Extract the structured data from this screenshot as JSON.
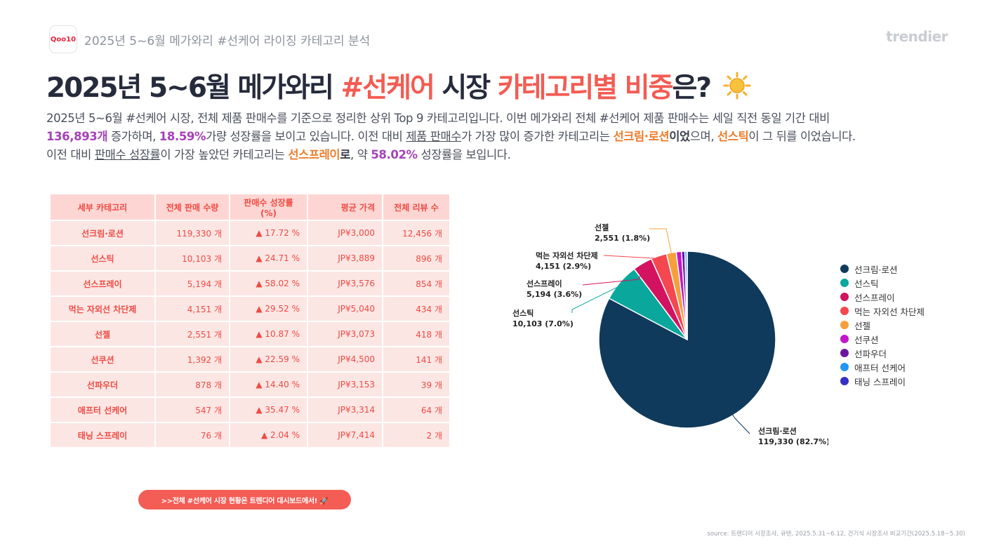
{
  "header": {
    "logo_text": "Qoo10",
    "top_label": "2025년 5~6월 메가와리 #선케어 라이징 카테고리 분석",
    "brand": "trendier"
  },
  "headline": {
    "part1": "2025년 5~6월 메가와리 ",
    "part2": "#선케어",
    "part3": " 시장 ",
    "part4": "카테고리별 비중",
    "part5": "은?"
  },
  "description": {
    "line1": "2025년 5~6월 #선케어 시장, 전체 제품 판매수를 기준으로 정리한 상위 Top 9 카테고리입니다. 이번 메가와리 전체 #선케어 제품 판매수는 세일 직전 동일 기간 대비",
    "l2a": "136,893개",
    "l2b": " 증가하며, ",
    "l2c": "18.59%",
    "l2d": "가량 성장률을 보이고 있습니다. 이전 대비 ",
    "l2e": "제품 판매수",
    "l2f": "가 가장 많이 증가한 카테고리는 ",
    "l2g": "선크림·로션",
    "l2h": "이었",
    "l2i": "으며, ",
    "l2j": "선스틱",
    "l2k": "이 그 뒤를 이었습니다.",
    "l3a": "이전 대비 ",
    "l3b": "판매수 성장률",
    "l3c": "이 가장 높았던 카테고리는 ",
    "l3d": "선스프레이",
    "l3e": "로",
    "l3f": ", 약 ",
    "l3g": "58.02%",
    "l3h": " 성장률을 보입니다."
  },
  "table": {
    "headers": [
      "세부 카테고리",
      "전체 판매 수량",
      "판매수 성장률(%)",
      "평균 가격",
      "전체 리뷰 수"
    ],
    "rows": [
      [
        "선크림·로션",
        "119,330 개",
        "▲ 17.72 %",
        "JP¥3,000",
        "12,456 개"
      ],
      [
        "선스틱",
        "10,103 개",
        "▲ 24.71 %",
        "JP¥3,889",
        "896 개"
      ],
      [
        "선스프레이",
        "5,194 개",
        "▲ 58.02 %",
        "JP¥3,576",
        "854 개"
      ],
      [
        "먹는 자외선 차단제",
        "4,151 개",
        "▲ 29.52 %",
        "JP¥5,040",
        "434 개"
      ],
      [
        "선젤",
        "2,551 개",
        "▲ 10.87 %",
        "JP¥3,073",
        "418 개"
      ],
      [
        "선쿠션",
        "1,392 개",
        "▲ 22.59 %",
        "JP¥4,500",
        "141 개"
      ],
      [
        "선파우더",
        "878 개",
        "▲ 14.40 %",
        "JP¥3,153",
        "39 개"
      ],
      [
        "애프터 선케어",
        "547 개",
        "▲ 35.47 %",
        "JP¥3,314",
        "64 개"
      ],
      [
        "태닝 스프레이",
        "76 개",
        "▲ 2.04 %",
        "JP¥7,414",
        "2 개"
      ]
    ]
  },
  "cta": ">>전체 #선케어 시장 현황은 트렌디어 대시보드에서! 🚀",
  "source": "source: 트렌디어 시장조사, 큐텐, 2025.5.31~6.12, 건기식 시장조사 비교기간(2025.5.18~5.30)",
  "chart_data": {
    "type": "pie",
    "categories": [
      "선크림·로션",
      "선스틱",
      "선스프레이",
      "먹는 자외선 차단제",
      "선젤",
      "선쿠션",
      "선파우더",
      "애프터 선케어",
      "태닝 스프레이"
    ],
    "values": [
      119330,
      10103,
      5194,
      4151,
      2551,
      1392,
      878,
      547,
      76
    ],
    "colors": [
      "#0f3a5c",
      "#0aa79c",
      "#d3135f",
      "#f4474f",
      "#f6a03d",
      "#c316c9",
      "#6c16a0",
      "#2196f3",
      "#3730c7"
    ],
    "data_labels": [
      {
        "name": "선크림·로션",
        "text": "119,330 (82.7%)"
      },
      {
        "name": "선스틱",
        "text": "10,103 (7.0%)"
      },
      {
        "name": "선스프레이",
        "text": "5,194 (3.6%)"
      },
      {
        "name": "먹는 자외선 차단제",
        "text": "4,151 (2.9%)"
      },
      {
        "name": "선젤",
        "text": "2,551 (1.8%)"
      }
    ],
    "legend_position": "right"
  }
}
